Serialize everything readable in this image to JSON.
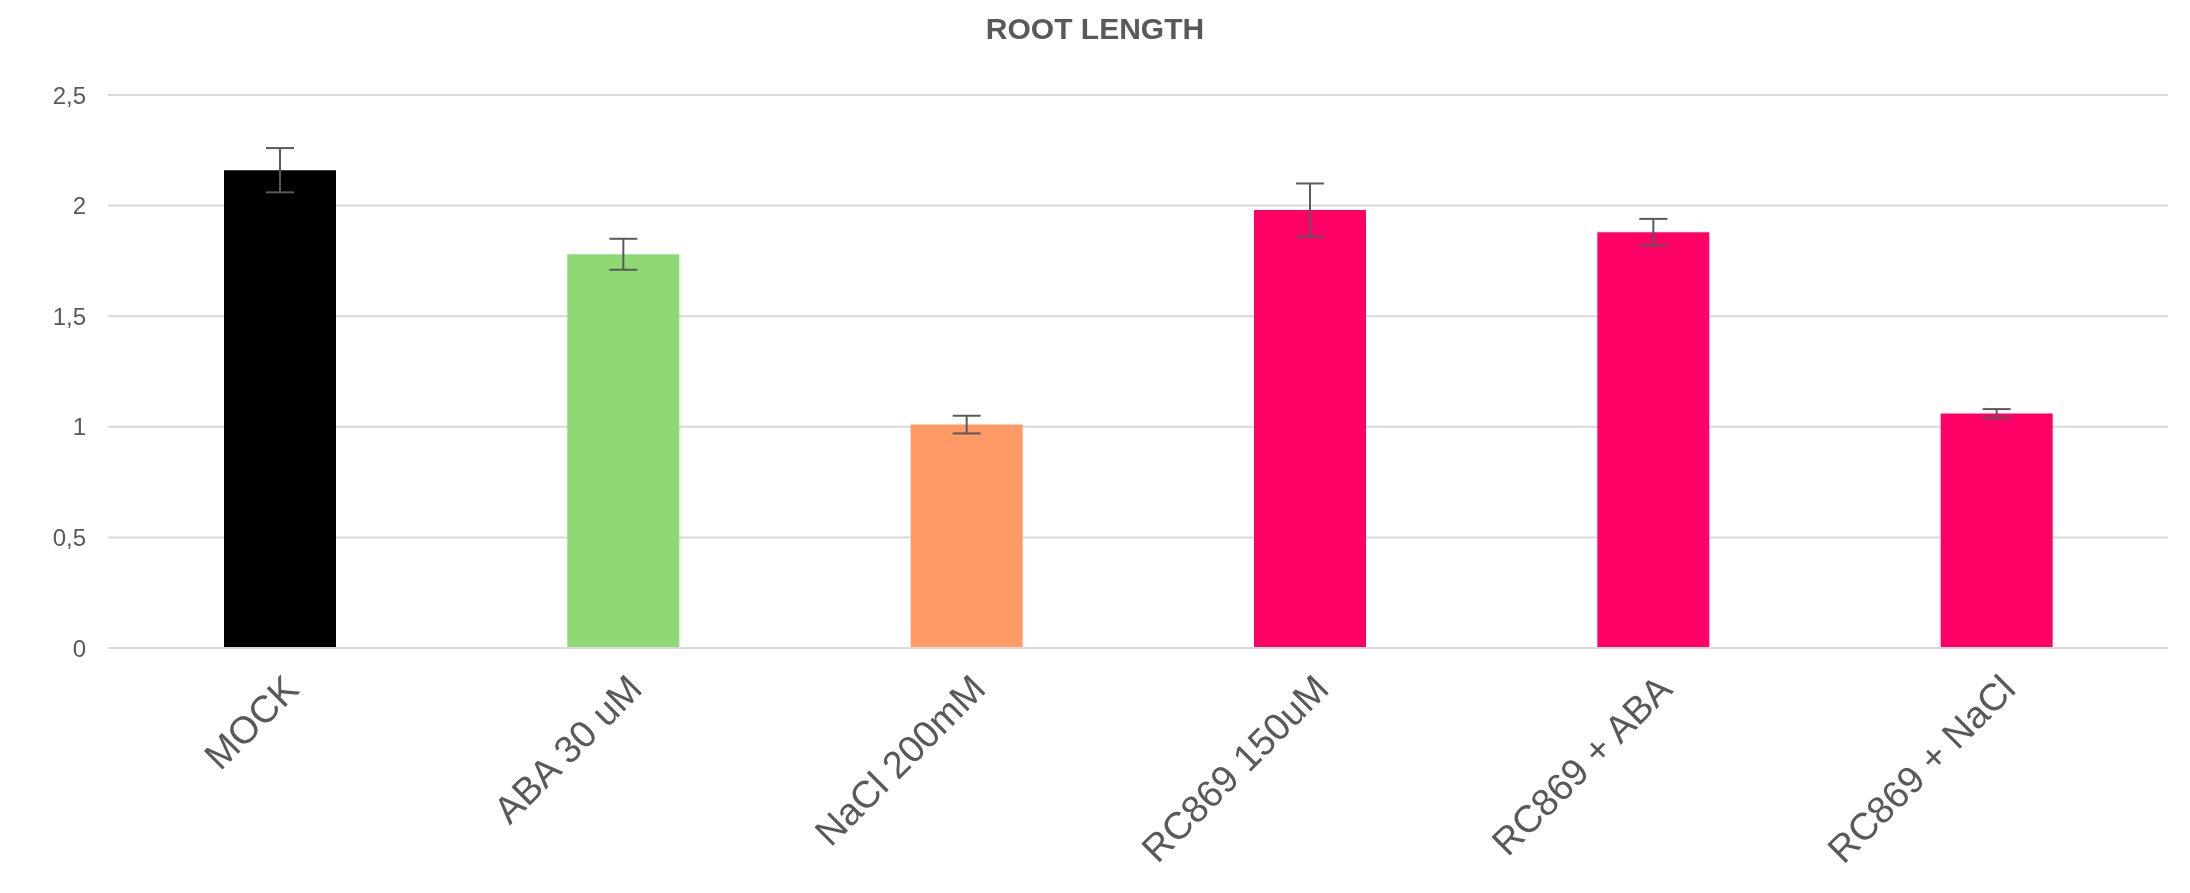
{
  "chart_data": {
    "type": "bar",
    "title": "ROOT LENGTH",
    "categories": [
      "MOCK",
      "ABA 30 uM",
      "NaCl 200mM",
      "RC869 150uM",
      "RC869 + ABA",
      "RC869 + NaCl"
    ],
    "values": [
      2.16,
      1.78,
      1.01,
      1.98,
      1.88,
      1.06
    ],
    "errors": [
      0.1,
      0.07,
      0.04,
      0.12,
      0.06,
      0.02
    ],
    "colors": [
      "#000000",
      "#8ed973",
      "#ff9966",
      "#ff0066",
      "#ff0066",
      "#ff0066"
    ],
    "ylim": [
      0,
      2.5
    ],
    "yticks": [
      {
        "value": 0,
        "label": "0"
      },
      {
        "value": 0.5,
        "label": "0,5"
      },
      {
        "value": 1,
        "label": "1"
      },
      {
        "value": 1.5,
        "label": "1,5"
      },
      {
        "value": 2,
        "label": "2"
      },
      {
        "value": 2.5,
        "label": "2,5"
      }
    ],
    "grid": "y"
  }
}
